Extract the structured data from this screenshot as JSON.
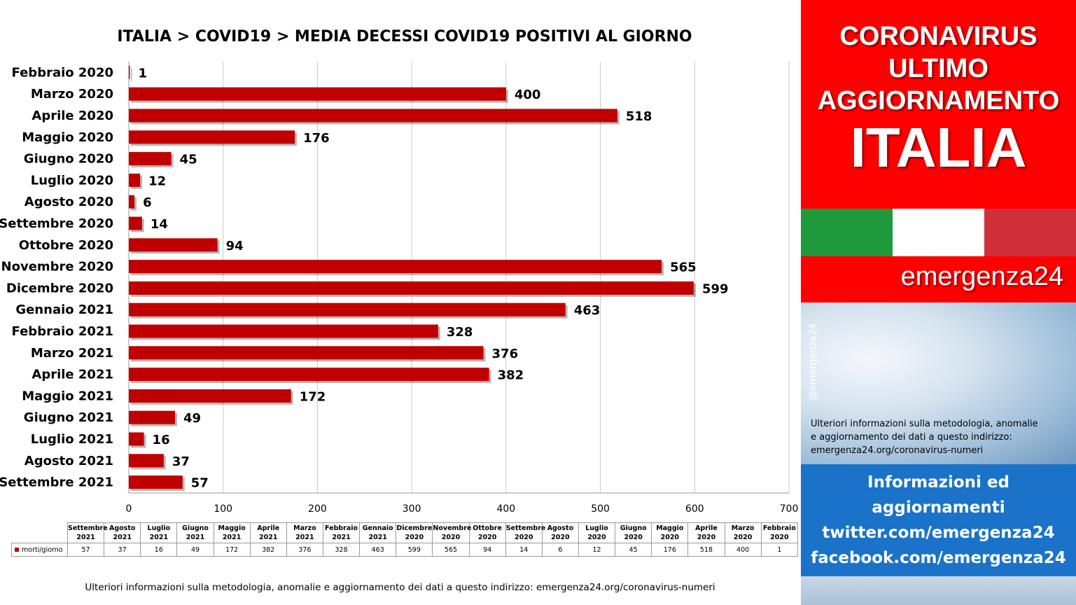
{
  "chart_data": {
    "type": "bar",
    "orientation": "horizontal",
    "title": "ITALIA >  COVID19 > MEDIA DECESSI COVID19 POSITIVI AL GIORNO",
    "categories": [
      "Febbraio 2020",
      "Marzo 2020",
      "Aprile 2020",
      "Maggio 2020",
      "Giugno 2020",
      "Luglio 2020",
      "Agosto 2020",
      "Settembre 2020",
      "Ottobre 2020",
      "Novembre 2020",
      "Dicembre 2020",
      "Gennaio 2021",
      "Febbraio 2021",
      "Marzo 2021",
      "Aprile 2021",
      "Maggio 2021",
      "Giugno 2021",
      "Luglio 2021",
      "Agosto 2021",
      "Settembre 2021"
    ],
    "series": [
      {
        "name": "morti/giorno",
        "color": "#c00000",
        "values": [
          1,
          400,
          518,
          176,
          45,
          12,
          6,
          14,
          94,
          565,
          599,
          463,
          328,
          376,
          382,
          172,
          49,
          16,
          37,
          57
        ]
      }
    ],
    "xlim": [
      0,
      700
    ],
    "xticks": [
      0,
      100,
      200,
      300,
      400,
      500,
      600,
      700
    ],
    "grid": "vertical",
    "data_table": {
      "headers": [
        [
          "Settembre",
          "2021"
        ],
        [
          "Agosto",
          "2021"
        ],
        [
          "Luglio",
          "2021"
        ],
        [
          "Giugno",
          "2021"
        ],
        [
          "Maggio",
          "2021"
        ],
        [
          "Aprile",
          "2021"
        ],
        [
          "Marzo",
          "2021"
        ],
        [
          "Febbraio",
          "2021"
        ],
        [
          "Gennaio",
          "2021"
        ],
        [
          "Dicembre",
          "2020"
        ],
        [
          "Novembre",
          "2020"
        ],
        [
          "Ottobre",
          "2020"
        ],
        [
          "Settembre",
          "2020"
        ],
        [
          "Agosto",
          "2020"
        ],
        [
          "Luglio",
          "2020"
        ],
        [
          "Giugno",
          "2020"
        ],
        [
          "Maggio",
          "2020"
        ],
        [
          "Aprile",
          "2020"
        ],
        [
          "Marzo",
          "2020"
        ],
        [
          "Febbraio",
          "2020"
        ]
      ],
      "series_label": "morti/giorno",
      "values": [
        "57",
        "37",
        "16",
        "49",
        "172",
        "382",
        "376",
        "328",
        "463",
        "599",
        "565",
        "94",
        "14",
        "6",
        "12",
        "45",
        "176",
        "518",
        "400",
        "1"
      ]
    }
  },
  "footnote": "Ulteriori informazioni sulla metodologia, anomalie e aggiornamento dei dati a questo indirizzo: emergenza24.org/coronavirus-numeri",
  "panel": {
    "headline": [
      "CORONAVIRUS",
      "ULTIMO",
      "AGGIORNAMENTO",
      "ITALIA"
    ],
    "brand": "emergenza24",
    "handle": "@emergenza24",
    "note": [
      "Ulteriori informazioni sulla metodologia, anomalie",
      "e aggiornamento dei dati a questo indirizzo:",
      "emergenza24.org/coronavirus-numeri"
    ],
    "info": [
      "Informazioni ed",
      "aggiornamenti",
      "twitter.com/emergenza24",
      "facebook.com/emergenza24"
    ],
    "colors": {
      "red": "#ff0000",
      "flag_green": "#1e9a3d",
      "flag_white": "#ffffff",
      "flag_red": "#d0303a",
      "blue": "#1a73c8"
    }
  }
}
